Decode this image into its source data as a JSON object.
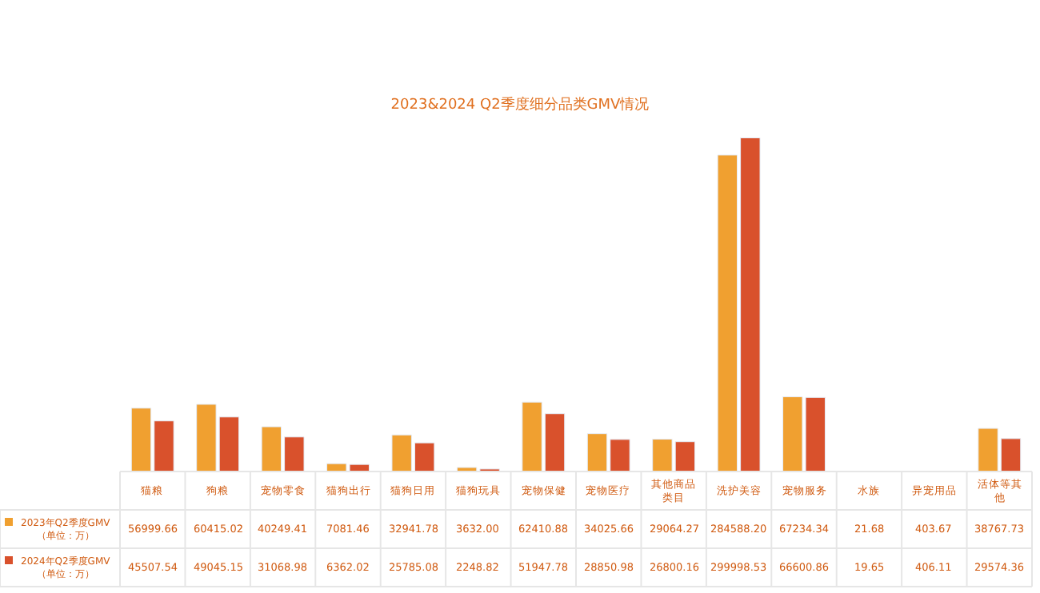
{
  "chart_data": {
    "type": "bar",
    "title": "2023&2024 Q2季度细分品类GMV情况",
    "categories": [
      "猫粮",
      "狗粮",
      "宠物零食",
      "猫狗出行",
      "猫狗日用",
      "猫狗玩具",
      "宠物保健",
      "宠物医疗",
      "其他商品类目",
      "洗护美容",
      "宠物服务",
      "水族",
      "异宠用品",
      "活体等其他"
    ],
    "series": [
      {
        "name": "2023年Q2季度GMV（单位：万）",
        "color": "#f0a030",
        "values": [
          56999.66,
          60415.02,
          40249.41,
          7081.46,
          32941.78,
          3632.0,
          62410.88,
          34025.66,
          29064.27,
          284588.2,
          67234.34,
          21.68,
          403.67,
          38767.73
        ],
        "value_labels": [
          "56999.66",
          "60415.02",
          "40249.41",
          "7081.46",
          "32941.78",
          "3632.00",
          "62410.88",
          "34025.66",
          "29064.27",
          "284588.20",
          "67234.34",
          "21.68",
          "403.67",
          "38767.73"
        ]
      },
      {
        "name": "2024年Q2季度GMV（单位：万）",
        "color": "#d9512c",
        "values": [
          45507.54,
          49045.15,
          31068.98,
          6362.02,
          25785.08,
          2248.82,
          51947.78,
          28850.98,
          26800.16,
          299998.53,
          66600.86,
          19.65,
          406.11,
          29574.36
        ],
        "value_labels": [
          "45507.54",
          "49045.15",
          "31068.98",
          "6362.02",
          "25785.08",
          "2248.82",
          "51947.78",
          "28850.98",
          "26800.16",
          "299998.53",
          "66600.86",
          "19.65",
          "406.11",
          "29574.36"
        ]
      }
    ],
    "legend": "bottom left"
  }
}
